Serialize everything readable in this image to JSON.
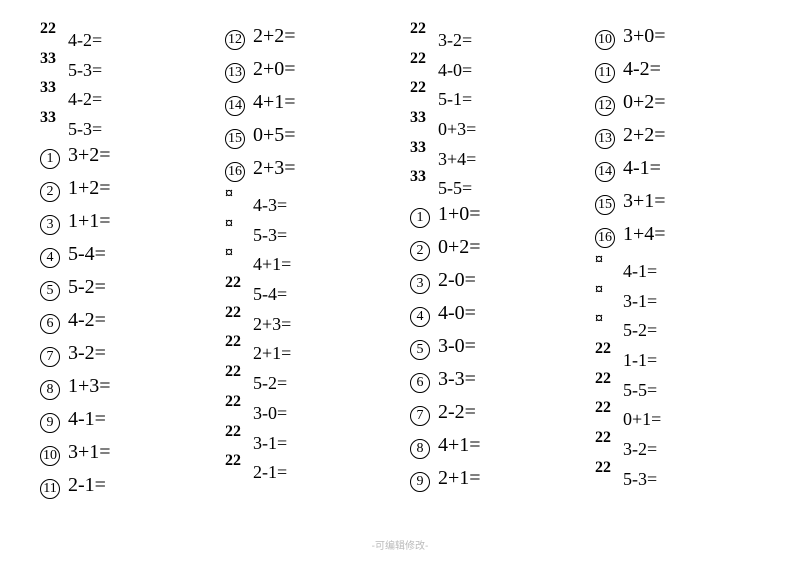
{
  "columns": [
    [
      {
        "marker": "22",
        "markerStyle": "sup",
        "expr": "4-2=",
        "exprStyle": "sub"
      },
      {
        "marker": "33",
        "markerStyle": "sup",
        "expr": "5-3=",
        "exprStyle": "sub"
      },
      {
        "marker": "33",
        "markerStyle": "sup",
        "expr": "4-2=",
        "exprStyle": "sub"
      },
      {
        "marker": "33",
        "markerStyle": "sup",
        "expr": "5-3=",
        "exprStyle": "sub"
      },
      {
        "marker": "1",
        "markerStyle": "circled",
        "expr": "3+2="
      },
      {
        "marker": "2",
        "markerStyle": "circled",
        "expr": "1+2="
      },
      {
        "marker": "3",
        "markerStyle": "circled",
        "expr": "1+1="
      },
      {
        "marker": "4",
        "markerStyle": "circled",
        "expr": "5-4="
      },
      {
        "marker": "5",
        "markerStyle": "circled",
        "expr": "5-2="
      },
      {
        "marker": "6",
        "markerStyle": "circled",
        "expr": "4-2="
      },
      {
        "marker": "7",
        "markerStyle": "circled",
        "expr": "3-2="
      },
      {
        "marker": "8",
        "markerStyle": "circled",
        "expr": "1+3="
      },
      {
        "marker": "9",
        "markerStyle": "circled",
        "expr": "4-1="
      },
      {
        "marker": "10",
        "markerStyle": "circled",
        "expr": "3+1="
      },
      {
        "marker": "11",
        "markerStyle": "circled",
        "expr": "2-1="
      }
    ],
    [
      {
        "marker": "12",
        "markerStyle": "circled",
        "expr": "2+2="
      },
      {
        "marker": "13",
        "markerStyle": "circled",
        "expr": "2+0="
      },
      {
        "marker": "14",
        "markerStyle": "circled",
        "expr": "4+1="
      },
      {
        "marker": "15",
        "markerStyle": "circled",
        "expr": "0+5="
      },
      {
        "marker": "16",
        "markerStyle": "circled",
        "expr": "2+3="
      },
      {
        "marker": "¤",
        "markerStyle": "sup",
        "expr": "4-3=",
        "exprStyle": "sub"
      },
      {
        "marker": "¤",
        "markerStyle": "sup",
        "expr": "5-3=",
        "exprStyle": "sub"
      },
      {
        "marker": "¤",
        "markerStyle": "sup",
        "expr": "4+1=",
        "exprStyle": "sub"
      },
      {
        "marker": "22",
        "markerStyle": "sup",
        "expr": "5-4=",
        "exprStyle": "sub"
      },
      {
        "marker": "22",
        "markerStyle": "sup",
        "expr": "2+3=",
        "exprStyle": "sub"
      },
      {
        "marker": "22",
        "markerStyle": "sup",
        "expr": "2+1=",
        "exprStyle": "sub"
      },
      {
        "marker": "22",
        "markerStyle": "sup",
        "expr": "5-2=",
        "exprStyle": "sub"
      },
      {
        "marker": "22",
        "markerStyle": "sup",
        "expr": "3-0=",
        "exprStyle": "sub"
      },
      {
        "marker": "22",
        "markerStyle": "sup",
        "expr": "3-1=",
        "exprStyle": "sub"
      },
      {
        "marker": "22",
        "markerStyle": "sup",
        "expr": "2-1=",
        "exprStyle": "sub"
      }
    ],
    [
      {
        "marker": "22",
        "markerStyle": "sup",
        "expr": "3-2=",
        "exprStyle": "sub"
      },
      {
        "marker": "22",
        "markerStyle": "sup",
        "expr": "4-0=",
        "exprStyle": "sub"
      },
      {
        "marker": "22",
        "markerStyle": "sup",
        "expr": "5-1=",
        "exprStyle": "sub"
      },
      {
        "marker": "33",
        "markerStyle": "sup",
        "expr": "0+3=",
        "exprStyle": "sub"
      },
      {
        "marker": "33",
        "markerStyle": "sup",
        "expr": "3+4=",
        "exprStyle": "sub"
      },
      {
        "marker": "33",
        "markerStyle": "sup",
        "expr": "5-5=",
        "exprStyle": "sub"
      },
      {
        "marker": "1",
        "markerStyle": "circled",
        "expr": "1+0="
      },
      {
        "marker": "2",
        "markerStyle": "circled",
        "expr": "0+2="
      },
      {
        "marker": "3",
        "markerStyle": "circled",
        "expr": "2-0="
      },
      {
        "marker": "4",
        "markerStyle": "circled",
        "expr": "4-0="
      },
      {
        "marker": "5",
        "markerStyle": "circled",
        "expr": "3-0="
      },
      {
        "marker": "6",
        "markerStyle": "circled",
        "expr": "3-3="
      },
      {
        "marker": "7",
        "markerStyle": "circled",
        "expr": "2-2="
      },
      {
        "marker": "8",
        "markerStyle": "circled",
        "expr": "4+1="
      },
      {
        "marker": "9",
        "markerStyle": "circled",
        "expr": "2+1="
      }
    ],
    [
      {
        "marker": "10",
        "markerStyle": "circled",
        "expr": "3+0="
      },
      {
        "marker": "11",
        "markerStyle": "circled",
        "expr": "4-2="
      },
      {
        "marker": "12",
        "markerStyle": "circled",
        "expr": "0+2="
      },
      {
        "marker": "13",
        "markerStyle": "circled",
        "expr": "2+2="
      },
      {
        "marker": "14",
        "markerStyle": "circled",
        "expr": "4-1="
      },
      {
        "marker": "15",
        "markerStyle": "circled",
        "expr": "3+1="
      },
      {
        "marker": "16",
        "markerStyle": "circled",
        "expr": "1+4="
      },
      {
        "marker": "¤",
        "markerStyle": "sup",
        "expr": "4-1=",
        "exprStyle": "sub"
      },
      {
        "marker": "¤",
        "markerStyle": "sup",
        "expr": "3-1=",
        "exprStyle": "sub"
      },
      {
        "marker": "¤",
        "markerStyle": "sup",
        "expr": "5-2=",
        "exprStyle": "sub"
      },
      {
        "marker": "22",
        "markerStyle": "sup",
        "expr": "1-1=",
        "exprStyle": "sub"
      },
      {
        "marker": "22",
        "markerStyle": "sup",
        "expr": "5-5=",
        "exprStyle": "sub"
      },
      {
        "marker": "22",
        "markerStyle": "sup",
        "expr": "0+1=",
        "exprStyle": "sub"
      },
      {
        "marker": "22",
        "markerStyle": "sup",
        "expr": "3-2=",
        "exprStyle": "sub"
      },
      {
        "marker": "22",
        "markerStyle": "sup",
        "expr": "5-3=",
        "exprStyle": "sub"
      }
    ]
  ],
  "footer": "-可编辑修改-"
}
